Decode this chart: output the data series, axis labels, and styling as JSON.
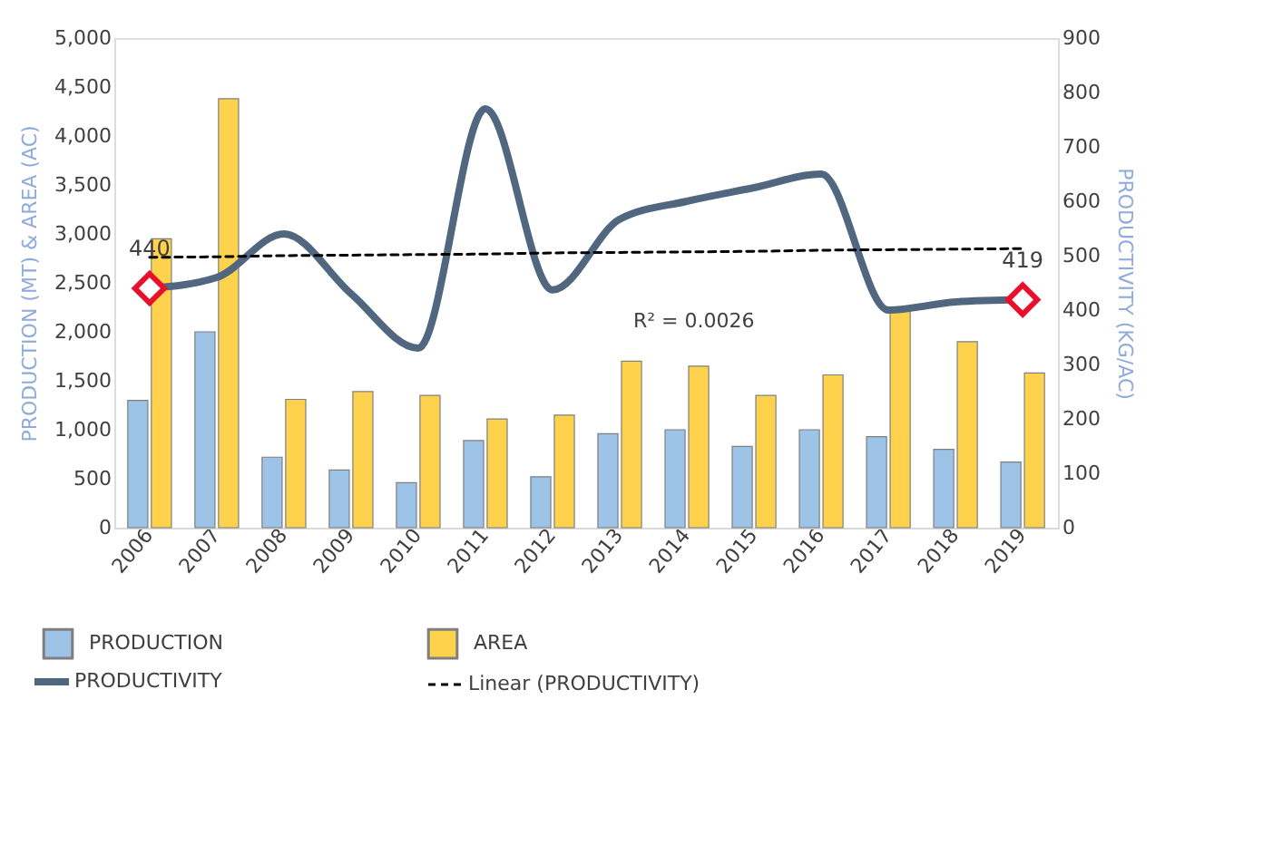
{
  "chart_data": {
    "type": "bar",
    "categories": [
      "2006",
      "2007",
      "2008",
      "2009",
      "2010",
      "2011",
      "2012",
      "2013",
      "2014",
      "2015",
      "2016",
      "2017",
      "2018",
      "2019"
    ],
    "series": [
      {
        "name": "PRODUCTION",
        "color": "#9dc3e6",
        "values": [
          1300,
          2000,
          720,
          590,
          460,
          890,
          520,
          960,
          1000,
          830,
          1000,
          930,
          800,
          670
        ]
      },
      {
        "name": "AREA",
        "color": "#ffd24d",
        "values": [
          2950,
          4380,
          1310,
          1390,
          1350,
          1110,
          1150,
          1700,
          1650,
          1350,
          1560,
          2220,
          1900,
          1580
        ]
      },
      {
        "name": "PRODUCTIVITY",
        "type": "line",
        "axis": "y2",
        "color": "#50677f",
        "line_style": "solid",
        "values": [
          440,
          460,
          540,
          430,
          330,
          770,
          437,
          567,
          600,
          625,
          650,
          400,
          415,
          419
        ],
        "value_labels": [
          "440",
          null,
          null,
          null,
          null,
          null,
          null,
          null,
          null,
          null,
          null,
          null,
          null,
          "419"
        ]
      },
      {
        "name": "Linear (PRODUCTIVITY)",
        "type": "line",
        "axis": "y2",
        "color": "#000000",
        "line_style": "dashed",
        "values": [
          497,
          498,
          500,
          501,
          502,
          503,
          505,
          506,
          507,
          508,
          510,
          511,
          512,
          513
        ]
      }
    ],
    "ylabel": "PRODUCTION (MT) & AREA (AC)",
    "y2label": "PRODUCTIVITY (KG/AC)",
    "ylim": [
      0,
      5000
    ],
    "yticks": [
      0,
      500,
      {
        "value": 1000,
        "label": "1,000"
      },
      {
        "value": 1500,
        "label": "1,500"
      },
      {
        "value": 2000,
        "label": "2,000"
      },
      {
        "value": 2500,
        "label": "2,500"
      },
      {
        "value": 3000,
        "label": "3,000"
      },
      {
        "value": 3500,
        "label": "3,500"
      },
      {
        "value": 4000,
        "label": "4,000"
      },
      {
        "value": 4500,
        "label": "4,500"
      },
      {
        "value": 5000,
        "label": "5,000"
      }
    ],
    "y2lim": [
      0,
      900
    ],
    "y2ticks": [
      0,
      100,
      200,
      300,
      400,
      500,
      600,
      700,
      800,
      900
    ],
    "annotations": [
      "R² = 0.0026"
    ],
    "legend": "bottom",
    "grid": false
  }
}
